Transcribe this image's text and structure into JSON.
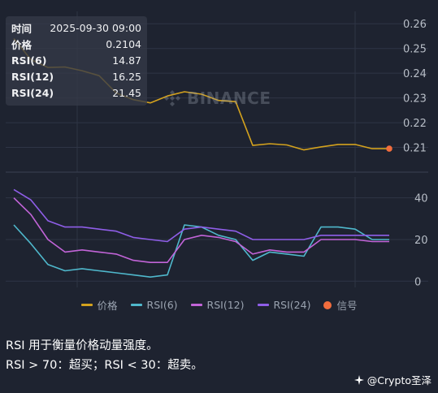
{
  "tooltip": {
    "rows": [
      {
        "label": "时间",
        "value": "2025-09-30 09:00"
      },
      {
        "label": "价格",
        "value": "0.2104"
      },
      {
        "label": "RSI(6)",
        "value": "14.87"
      },
      {
        "label": "RSI(12)",
        "value": "16.25"
      },
      {
        "label": "RSI(24)",
        "value": "21.45"
      }
    ]
  },
  "watermark": {
    "text": "BINANCE"
  },
  "legend": [
    {
      "label": "价格",
      "color": "#d4a21d",
      "kind": "line"
    },
    {
      "label": "RSI(6)",
      "color": "#4fb8cc",
      "kind": "line"
    },
    {
      "label": "RSI(12)",
      "color": "#c264d8",
      "kind": "line"
    },
    {
      "label": "RSI(24)",
      "color": "#8f5ee8",
      "kind": "line"
    },
    {
      "label": "信号",
      "color": "#f26d3d",
      "kind": "dot"
    }
  ],
  "notes": {
    "line1": "RSI 用于衡量价格动量强度。",
    "line2": "RSI > 70：超买；RSI < 30：超卖。"
  },
  "brand": {
    "text": "@Crypto圣泽"
  },
  "chart_data": [
    {
      "type": "line",
      "panel": "price",
      "ylim": [
        0.2,
        0.265
      ],
      "yticks": [
        "0.21",
        "0.22",
        "0.23",
        "0.24",
        "0.25",
        "0.26"
      ],
      "grid": true,
      "series": [
        {
          "name": "价格",
          "color": "#d4a21d",
          "values": [
            0.254,
            0.2455,
            0.2423,
            0.2425,
            0.241,
            0.239,
            0.232,
            0.2293,
            0.228,
            0.2308,
            0.2325,
            0.2315,
            0.229,
            0.2285,
            0.2108,
            0.2115,
            0.211,
            0.209,
            0.2102,
            0.2112,
            0.2112,
            0.2095,
            0.2095
          ]
        },
        {
          "name": "信号",
          "color": "#f26d3d",
          "points": [
            {
              "index": 22,
              "value": 0.2095
            }
          ]
        }
      ]
    },
    {
      "type": "line",
      "panel": "rsi",
      "ylim": [
        -3,
        50
      ],
      "yticks": [
        "0",
        "20",
        "40"
      ],
      "grid": true,
      "series": [
        {
          "name": "RSI(6)",
          "color": "#4fb8cc",
          "values": [
            27,
            18,
            8,
            5,
            6,
            5,
            4,
            3,
            2,
            3,
            27,
            26,
            22,
            20,
            10,
            14,
            13,
            12,
            26,
            26,
            25,
            20,
            20
          ]
        },
        {
          "name": "RSI(12)",
          "color": "#c264d8",
          "values": [
            40,
            32,
            20,
            14,
            15,
            14,
            13,
            10,
            9,
            9,
            20,
            22,
            21,
            19,
            13,
            15,
            14,
            14,
            20,
            20,
            20,
            19,
            19
          ]
        },
        {
          "name": "RSI(24)",
          "color": "#8f5ee8",
          "values": [
            44,
            39,
            29,
            26,
            26,
            25,
            24,
            21,
            20,
            19,
            25,
            26,
            25,
            24,
            20,
            20,
            20,
            20,
            22,
            22,
            22,
            22,
            22
          ]
        }
      ]
    }
  ]
}
